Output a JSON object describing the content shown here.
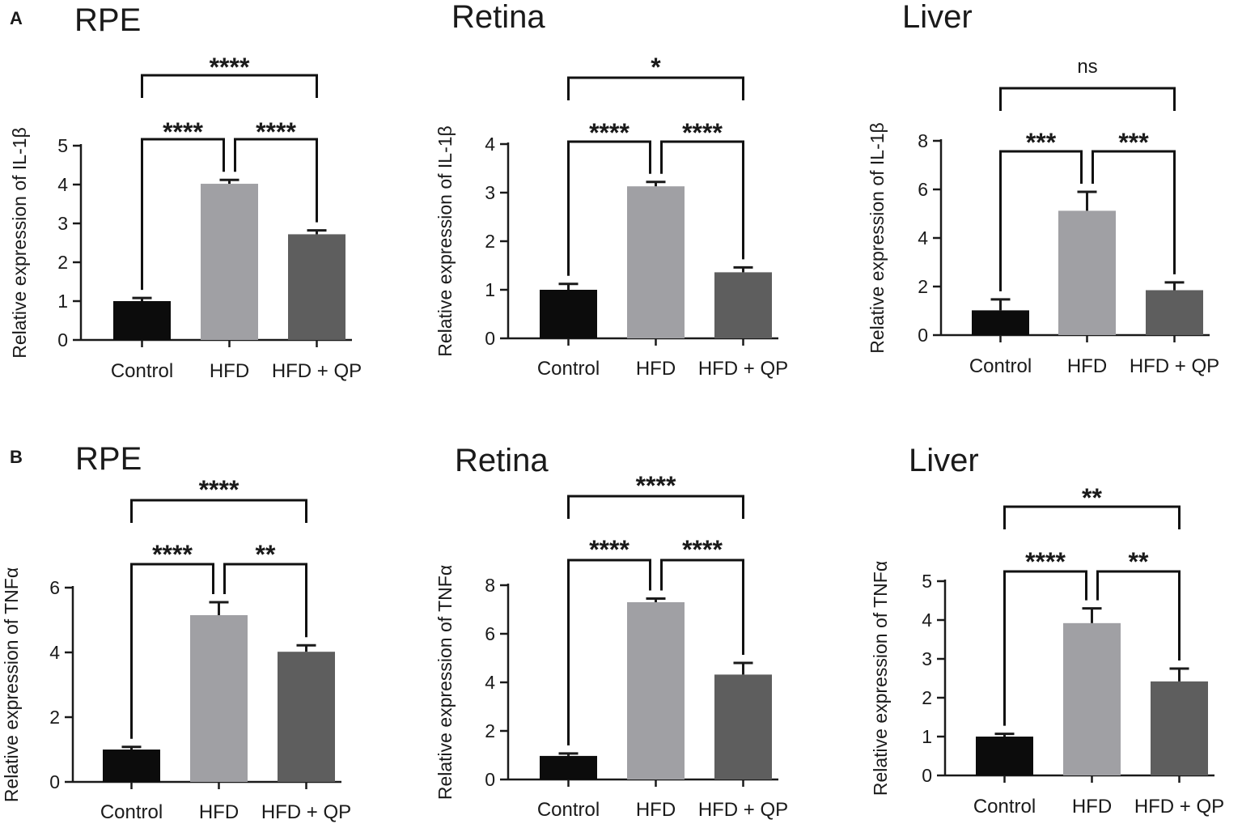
{
  "figure": {
    "panel_letters": [
      "A",
      "B"
    ]
  },
  "chart_data": [
    {
      "type": "bar",
      "panel": "A",
      "title": "RPE",
      "ylabel": "Relative expression of IL-1β",
      "categories": [
        "Control",
        "HFD",
        "HFD + QP"
      ],
      "values": [
        1.0,
        4.02,
        2.72
      ],
      "errors": [
        0.08,
        0.1,
        0.1
      ],
      "colors": [
        "#0c0c0c",
        "#a0a0a4",
        "#5e5e5e"
      ],
      "ylim": [
        0,
        5
      ],
      "yticks": [
        0,
        1,
        2,
        3,
        4,
        5
      ],
      "comparisons": [
        {
          "from": 0,
          "to": 1,
          "label": "****"
        },
        {
          "from": 1,
          "to": 2,
          "label": "****"
        },
        {
          "from": 0,
          "to": 2,
          "label": "****"
        }
      ]
    },
    {
      "type": "bar",
      "panel": "A",
      "title": "Retina",
      "ylabel": "Relative expression of IL-1β",
      "categories": [
        "Control",
        "HFD",
        "HFD + QP"
      ],
      "values": [
        1.0,
        3.13,
        1.36
      ],
      "errors": [
        0.12,
        0.09,
        0.1
      ],
      "colors": [
        "#0c0c0c",
        "#a0a0a4",
        "#5e5e5e"
      ],
      "ylim": [
        0,
        4
      ],
      "yticks": [
        0,
        1,
        2,
        3,
        4
      ],
      "comparisons": [
        {
          "from": 0,
          "to": 1,
          "label": "****"
        },
        {
          "from": 1,
          "to": 2,
          "label": "****"
        },
        {
          "from": 0,
          "to": 2,
          "label": "*"
        }
      ]
    },
    {
      "type": "bar",
      "panel": "A",
      "title": "Liver",
      "ylabel": "Relative expression of IL-1β",
      "categories": [
        "Control",
        "HFD",
        "HFD + QP"
      ],
      "values": [
        1.02,
        5.12,
        1.85
      ],
      "errors": [
        0.45,
        0.78,
        0.32
      ],
      "colors": [
        "#0c0c0c",
        "#a0a0a4",
        "#5e5e5e"
      ],
      "ylim": [
        0,
        8
      ],
      "yticks": [
        0,
        2,
        4,
        6,
        8
      ],
      "comparisons": [
        {
          "from": 0,
          "to": 1,
          "label": "***"
        },
        {
          "from": 1,
          "to": 2,
          "label": "***"
        },
        {
          "from": 0,
          "to": 2,
          "label": "ns"
        }
      ]
    },
    {
      "type": "bar",
      "panel": "B",
      "title": "RPE",
      "ylabel": "Relative expression of TNFα",
      "categories": [
        "Control",
        "HFD",
        "HFD + QP"
      ],
      "values": [
        1.0,
        5.15,
        4.02
      ],
      "errors": [
        0.08,
        0.4,
        0.2
      ],
      "colors": [
        "#0c0c0c",
        "#a0a0a4",
        "#5e5e5e"
      ],
      "ylim": [
        0,
        6
      ],
      "yticks": [
        0,
        2,
        4,
        6
      ],
      "comparisons": [
        {
          "from": 0,
          "to": 1,
          "label": "****"
        },
        {
          "from": 1,
          "to": 2,
          "label": "**"
        },
        {
          "from": 0,
          "to": 2,
          "label": "****"
        }
      ]
    },
    {
      "type": "bar",
      "panel": "B",
      "title": "Retina",
      "ylabel": "Relative expression of TNFα",
      "categories": [
        "Control",
        "HFD",
        "HFD + QP"
      ],
      "values": [
        0.97,
        7.3,
        4.32
      ],
      "errors": [
        0.1,
        0.15,
        0.48
      ],
      "colors": [
        "#0c0c0c",
        "#a0a0a4",
        "#5e5e5e"
      ],
      "ylim": [
        0,
        8
      ],
      "yticks": [
        0,
        2,
        4,
        6,
        8
      ],
      "comparisons": [
        {
          "from": 0,
          "to": 1,
          "label": "****"
        },
        {
          "from": 1,
          "to": 2,
          "label": "****"
        },
        {
          "from": 0,
          "to": 2,
          "label": "****"
        }
      ]
    },
    {
      "type": "bar",
      "panel": "B",
      "title": "Liver",
      "ylabel": "Relative expression of TNFα",
      "categories": [
        "Control",
        "HFD",
        "HFD + QP"
      ],
      "values": [
        1.0,
        3.92,
        2.42
      ],
      "errors": [
        0.07,
        0.38,
        0.33
      ],
      "colors": [
        "#0c0c0c",
        "#a0a0a4",
        "#5e5e5e"
      ],
      "ylim": [
        0,
        5
      ],
      "yticks": [
        0,
        1,
        2,
        3,
        4,
        5
      ],
      "comparisons": [
        {
          "from": 0,
          "to": 1,
          "label": "****"
        },
        {
          "from": 1,
          "to": 2,
          "label": "**"
        },
        {
          "from": 0,
          "to": 2,
          "label": "**"
        }
      ]
    }
  ]
}
